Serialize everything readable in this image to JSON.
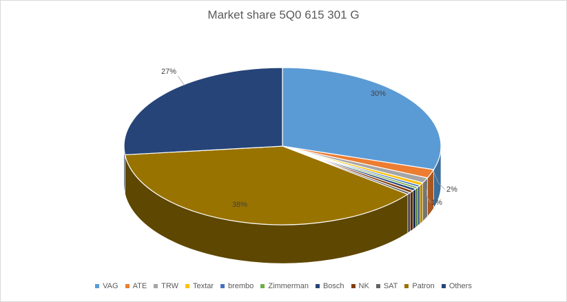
{
  "chart_data": {
    "type": "pie",
    "variant": "3d",
    "title": "Market share 5Q0 615 301 G",
    "legend_position": "bottom",
    "slices": [
      {
        "name": "VAG",
        "value": 30.0,
        "color": "#5b9bd5",
        "side": "#3d6d99",
        "label": "30%"
      },
      {
        "name": "ATE",
        "value": 1.8,
        "color": "#ed7d31",
        "side": "#a95721",
        "label": "2%"
      },
      {
        "name": "TRW",
        "value": 1.1,
        "color": "#a5a5a5",
        "side": "#757575",
        "label": ""
      },
      {
        "name": "Textar",
        "value": 0.6,
        "color": "#ffc000",
        "side": "#b68800",
        "label": ""
      },
      {
        "name": "brembo",
        "value": 0.4,
        "color": "#4472c4",
        "side": "#2f508a",
        "label": ""
      },
      {
        "name": "Zimmerman",
        "value": 0.4,
        "color": "#70ad47",
        "side": "#4e7a31",
        "label": ""
      },
      {
        "name": "Bosch",
        "value": 0.5,
        "color": "#264478",
        "side": "#1a2f54",
        "label": ""
      },
      {
        "name": "NK",
        "value": 0.5,
        "color": "#843c0c",
        "side": "#5c2a08",
        "label": "1%"
      },
      {
        "name": "SAT",
        "value": 0.4,
        "color": "#636363",
        "side": "#454545",
        "label": ""
      },
      {
        "name": "Patron",
        "value": 38.0,
        "color": "#997300",
        "side": "#5e4700",
        "label": "38%"
      },
      {
        "name": "Others",
        "value": 26.9,
        "color": "#264478",
        "side": "#17294a",
        "label": "27%"
      }
    ]
  }
}
